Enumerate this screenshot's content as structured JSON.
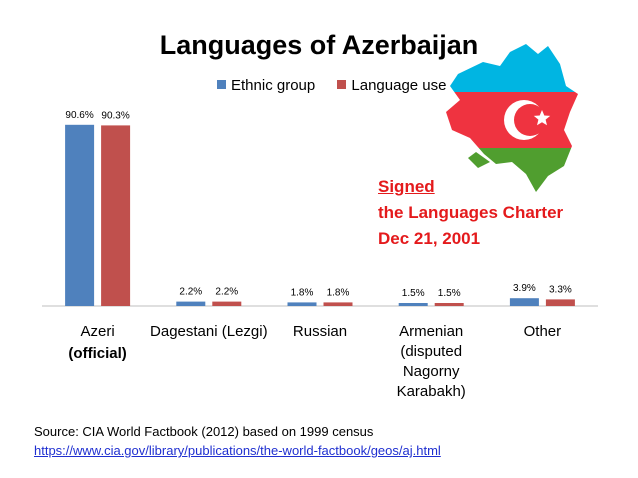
{
  "chart_data": {
    "type": "bar",
    "title": "Languages of Azerbaijan",
    "categories": [
      "Azeri",
      "Dagestani (Lezgi)",
      "Russian",
      "Armenian (disputed Nagorny Karabakh)",
      "Other"
    ],
    "category_sublabels": [
      "(official)",
      "",
      "",
      "",
      ""
    ],
    "series": [
      {
        "name": "Ethnic group",
        "values": [
          90.6,
          2.2,
          1.8,
          1.5,
          3.9
        ],
        "labels": [
          "90.6%",
          "2.2%",
          "1.8%",
          "1.5%",
          "3.9%"
        ],
        "color": "#4f81bd"
      },
      {
        "name": "Language use",
        "values": [
          90.3,
          2.2,
          1.8,
          1.5,
          3.3
        ],
        "labels": [
          "90.3%",
          "2.2%",
          "1.8%",
          "1.5%",
          "3.3%"
        ],
        "color": "#c0504d"
      }
    ],
    "ylim": [
      0,
      100
    ],
    "grid": false,
    "legend_position": "top"
  },
  "annotation": {
    "line1": "Signed",
    "line2": "the Languages Charter",
    "line3": "Dec 21, 2001",
    "color": "#e41a1c"
  },
  "source": {
    "text": "Source: CIA World Factbook (2012) based on 1999 census",
    "url": "https://www.cia.gov/library/publications/the-world-factbook/geos/aj.html"
  },
  "flag_colors": {
    "blue": "#00b5e2",
    "red": "#ef3340",
    "green": "#509e2f",
    "white": "#ffffff"
  }
}
